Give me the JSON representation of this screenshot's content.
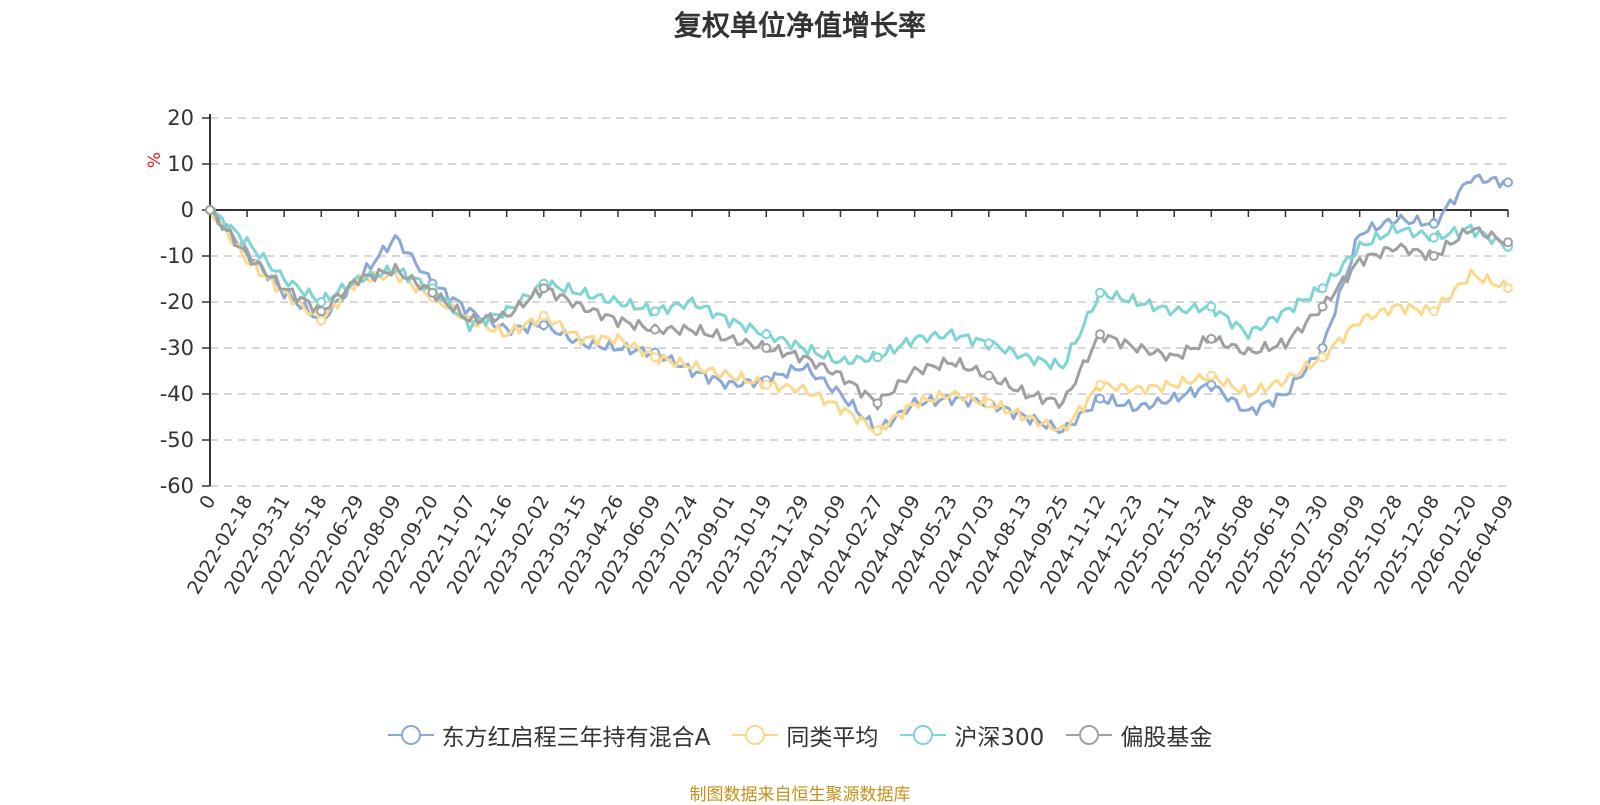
{
  "chart_data": {
    "type": "line",
    "title": "复权单位净值增长率",
    "ylabel": "%",
    "xlabel": "",
    "ylim": [
      -60,
      20
    ],
    "yticks": [
      20,
      10,
      0,
      -10,
      -20,
      -30,
      -40,
      -50,
      -60
    ],
    "grid": true,
    "legend_position": "bottom",
    "x": [
      "0",
      "2022-02-18",
      "2022-03-31",
      "2022-05-18",
      "2022-06-29",
      "2022-08-09",
      "2022-09-20",
      "2022-11-07",
      "2022-12-16",
      "2023-02-02",
      "2023-03-15",
      "2023-04-26",
      "2023-06-09",
      "2023-07-24",
      "2023-09-01",
      "2023-10-19",
      "2023-11-29",
      "2024-01-09",
      "2024-02-27",
      "2024-04-09",
      "2024-05-23",
      "2024-07-03",
      "2024-08-13",
      "2024-09-25",
      "2024-11-12",
      "2024-12-23",
      "2025-02-11",
      "2025-03-24",
      "2025-05-08",
      "2025-06-19",
      "2025-07-30",
      "2025-09-09",
      "2025-10-28",
      "2025-12-08",
      "2026-01-20",
      "2026-04-09"
    ],
    "series": [
      {
        "name": "东方红启程三年持有混合A",
        "color": "#8aa9d6",
        "values": [
          0,
          -9,
          -18,
          -24,
          -15,
          -6,
          -16,
          -22,
          -26,
          -25,
          -29,
          -30,
          -31,
          -35,
          -38,
          -37,
          -34,
          -40,
          -48,
          -42,
          -41,
          -42,
          -45,
          -48,
          -41,
          -43,
          -41,
          -38,
          -44,
          -40,
          -30,
          -5,
          -2,
          -3,
          7,
          6
        ]
      },
      {
        "name": "同类平均",
        "color": "#fad98e",
        "values": [
          0,
          -11,
          -18,
          -24,
          -15,
          -14,
          -19,
          -24,
          -27,
          -23,
          -28,
          -28,
          -32,
          -34,
          -36,
          -38,
          -39,
          -43,
          -48,
          -42,
          -40,
          -42,
          -45,
          -48,
          -38,
          -39,
          -38,
          -36,
          -40,
          -37,
          -32,
          -24,
          -21,
          -22,
          -14,
          -17
        ]
      },
      {
        "name": "沪深300",
        "color": "#7fd4d4",
        "values": [
          0,
          -7,
          -15,
          -20,
          -15,
          -13,
          -17,
          -25,
          -22,
          -16,
          -18,
          -20,
          -22,
          -20,
          -24,
          -27,
          -30,
          -33,
          -32,
          -28,
          -27,
          -29,
          -32,
          -34,
          -18,
          -20,
          -22,
          -21,
          -27,
          -22,
          -17,
          -8,
          -4,
          -6,
          -4,
          -8
        ]
      },
      {
        "name": "偏股基金",
        "color": "#a0a0a0",
        "values": [
          0,
          -10,
          -17,
          -22,
          -15,
          -13,
          -18,
          -24,
          -23,
          -17,
          -21,
          -24,
          -26,
          -26,
          -28,
          -30,
          -32,
          -36,
          -42,
          -35,
          -33,
          -36,
          -40,
          -42,
          -27,
          -30,
          -32,
          -28,
          -31,
          -29,
          -21,
          -11,
          -8,
          -10,
          -4,
          -7
        ]
      }
    ]
  },
  "source_note": "制图数据来自恒生聚源数据库",
  "colors": {
    "axis": "#333333",
    "grid": "#cccccc",
    "ylabel": "#e02020",
    "source_note": "#c8901a",
    "title": "#333333"
  }
}
